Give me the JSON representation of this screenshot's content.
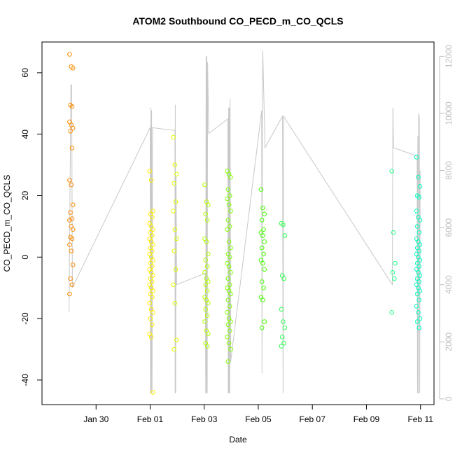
{
  "chart_data": {
    "type": "scatter",
    "title": "ATOM2 Southbound CO_PECD_m_CO_QCLS",
    "xlabel": "Date",
    "ylabel": "CO_PECD_m_CO_QCLS",
    "x_unit": "days",
    "xlim": [
      "2016-01-28T00:00",
      "2016-02-11T12:00"
    ],
    "ylim": [
      -48,
      70
    ],
    "yticks": [
      -40,
      -20,
      0,
      20,
      40,
      60
    ],
    "xticks": [
      {
        "date": "2016-01-30",
        "label": "Jan 30"
      },
      {
        "date": "2016-02-01",
        "label": "Feb 01"
      },
      {
        "date": "2016-02-03",
        "label": "Feb 03"
      },
      {
        "date": "2016-02-05",
        "label": "Feb 05"
      },
      {
        "date": "2016-02-07",
        "label": "Feb 07"
      },
      {
        "date": "2016-02-09",
        "label": "Feb 09"
      },
      {
        "date": "2016-02-11",
        "label": "Feb 11"
      }
    ],
    "y2lim": [
      -200,
      12500
    ],
    "y2ticks": [
      0,
      2000,
      4000,
      6000,
      8000,
      10000,
      12000
    ],
    "y2_color": "#bfbfbf",
    "groups": [
      {
        "t": "2016-01-29T02:00",
        "color": "#ff8c00",
        "values": [
          66,
          62,
          61.5,
          49.5,
          49,
          44,
          43,
          42,
          41,
          35.5,
          25,
          23.5,
          17,
          14.5,
          12.5,
          12,
          10,
          9,
          6.5,
          6,
          4,
          2,
          -2.5,
          -7,
          -9,
          -12
        ]
      },
      {
        "t": "2016-02-01T01:00",
        "color": "#ffef00",
        "values": [
          28,
          25,
          15,
          14,
          13,
          11,
          10,
          9,
          8,
          7,
          6,
          5,
          4,
          3,
          2,
          1,
          0,
          -1,
          -2,
          -3,
          -4,
          -5,
          -6,
          -7,
          -8,
          -9,
          -10,
          -11,
          -12,
          -13,
          -15,
          -17,
          -18,
          -20,
          -22,
          -25,
          -26,
          -44
        ]
      },
      {
        "t": "2016-02-01T22:00",
        "color": "#e3ff00",
        "values": [
          39,
          30,
          27,
          24,
          18,
          15,
          9,
          6,
          2,
          -4,
          -9,
          -15,
          -27,
          -30
        ]
      },
      {
        "t": "2016-02-03T02:00",
        "color": "#b3ff00",
        "values": [
          23.5,
          18,
          17,
          14,
          12,
          6,
          5,
          1,
          -1,
          -3,
          -5,
          -7,
          -8,
          -9,
          -11,
          -13,
          -14,
          -15,
          -17,
          -19,
          -21,
          -24,
          -25,
          -28,
          -29
        ]
      },
      {
        "t": "2016-02-03T22:00",
        "color": "#7fff00",
        "values": [
          28,
          27,
          26,
          22,
          20,
          19,
          17,
          15,
          12,
          10,
          9,
          5,
          3,
          1,
          0,
          -2,
          -3,
          -5,
          -7,
          -9,
          -10,
          -11,
          -12,
          -14,
          -16,
          -18,
          -20,
          -21,
          -22,
          -24,
          -26,
          -28,
          -30,
          -34
        ]
      },
      {
        "t": "2016-02-05T04:00",
        "color": "#44ff00",
        "values": [
          22,
          16,
          14,
          12,
          9,
          8,
          7,
          5,
          3,
          1,
          -1,
          -2,
          -4,
          -8,
          -10,
          -13,
          -14,
          -21,
          -23
        ]
      },
      {
        "t": "2016-02-05T22:00",
        "color": "#2bff50",
        "values": [
          11,
          10.5,
          7,
          -6,
          -7,
          -17,
          -21,
          -23,
          -26,
          -28,
          -29
        ]
      },
      {
        "t": "2016-02-10T00:00",
        "color": "#22ff8c",
        "values": [
          28,
          8,
          -2,
          -5,
          -7,
          -18
        ]
      },
      {
        "t": "2016-02-10T22:00",
        "color": "#00ffbf",
        "values": [
          32.5,
          26,
          23,
          20,
          19.5,
          15,
          13,
          12,
          10,
          8,
          6,
          5,
          4,
          3,
          2,
          1,
          0,
          -1,
          -2,
          -3,
          -4,
          -5,
          -6,
          -7,
          -8,
          -9,
          -10,
          -11,
          -12,
          -14,
          -16,
          -18,
          -20,
          -21,
          -23
        ]
      }
    ],
    "altitude_track": [
      [
        "2016-01-29T00:00",
        3050
      ],
      [
        "2016-01-29T01:40",
        11000
      ],
      [
        "2016-01-29T02:20",
        11000
      ],
      [
        "2016-01-29T03:00",
        3900
      ],
      [
        "2016-02-01T00:00",
        9500
      ],
      [
        "2016-02-01T00:20",
        200
      ],
      [
        "2016-02-01T00:40",
        10200
      ],
      [
        "2016-02-01T01:00",
        200
      ],
      [
        "2016-02-01T01:20",
        10100
      ],
      [
        "2016-02-01T01:40",
        200
      ],
      [
        "2016-02-01T02:10",
        9500
      ],
      [
        "2016-02-01T22:00",
        9400
      ],
      [
        "2016-02-01T22:10",
        200
      ],
      [
        "2016-02-01T22:20",
        10300
      ],
      [
        "2016-02-01T22:40",
        200
      ],
      [
        "2016-02-01T23:00",
        7800
      ],
      [
        "2016-02-01T23:30",
        4000
      ],
      [
        "2016-02-03T01:00",
        4400
      ],
      [
        "2016-02-03T01:20",
        200
      ],
      [
        "2016-02-03T01:40",
        12000
      ],
      [
        "2016-02-03T02:00",
        200
      ],
      [
        "2016-02-03T02:20",
        12000
      ],
      [
        "2016-02-03T02:40",
        200
      ],
      [
        "2016-02-03T03:00",
        11800
      ],
      [
        "2016-02-03T04:00",
        9300
      ],
      [
        "2016-02-03T21:00",
        9800
      ],
      [
        "2016-02-03T21:20",
        200
      ],
      [
        "2016-02-03T21:40",
        10200
      ],
      [
        "2016-02-03T22:00",
        200
      ],
      [
        "2016-02-03T22:20",
        10200
      ],
      [
        "2016-02-03T22:40",
        200
      ],
      [
        "2016-02-03T23:00",
        10500
      ],
      [
        "2016-02-03T23:30",
        1300
      ],
      [
        "2016-02-05T03:00",
        10100
      ],
      [
        "2016-02-05T03:20",
        900
      ],
      [
        "2016-02-05T03:40",
        10500
      ],
      [
        "2016-02-05T04:00",
        12200
      ],
      [
        "2016-02-05T05:00",
        10500
      ],
      [
        "2016-02-05T06:00",
        8800
      ],
      [
        "2016-02-05T21:30",
        9900
      ],
      [
        "2016-02-05T22:00",
        200
      ],
      [
        "2016-02-05T22:30",
        9900
      ],
      [
        "2016-02-06T00:00",
        9800
      ],
      [
        "2016-02-09T23:00",
        4000
      ],
      [
        "2016-02-09T23:30",
        10200
      ],
      [
        "2016-02-10T00:00",
        8800
      ],
      [
        "2016-02-10T21:00",
        8500
      ],
      [
        "2016-02-10T21:20",
        200
      ],
      [
        "2016-02-10T21:40",
        9200
      ],
      [
        "2016-02-10T22:00",
        200
      ],
      [
        "2016-02-10T22:20",
        10000
      ],
      [
        "2016-02-10T23:00",
        9800
      ],
      [
        "2016-02-10T23:20",
        200
      ],
      [
        "2016-02-10T23:40",
        8000
      ]
    ]
  }
}
